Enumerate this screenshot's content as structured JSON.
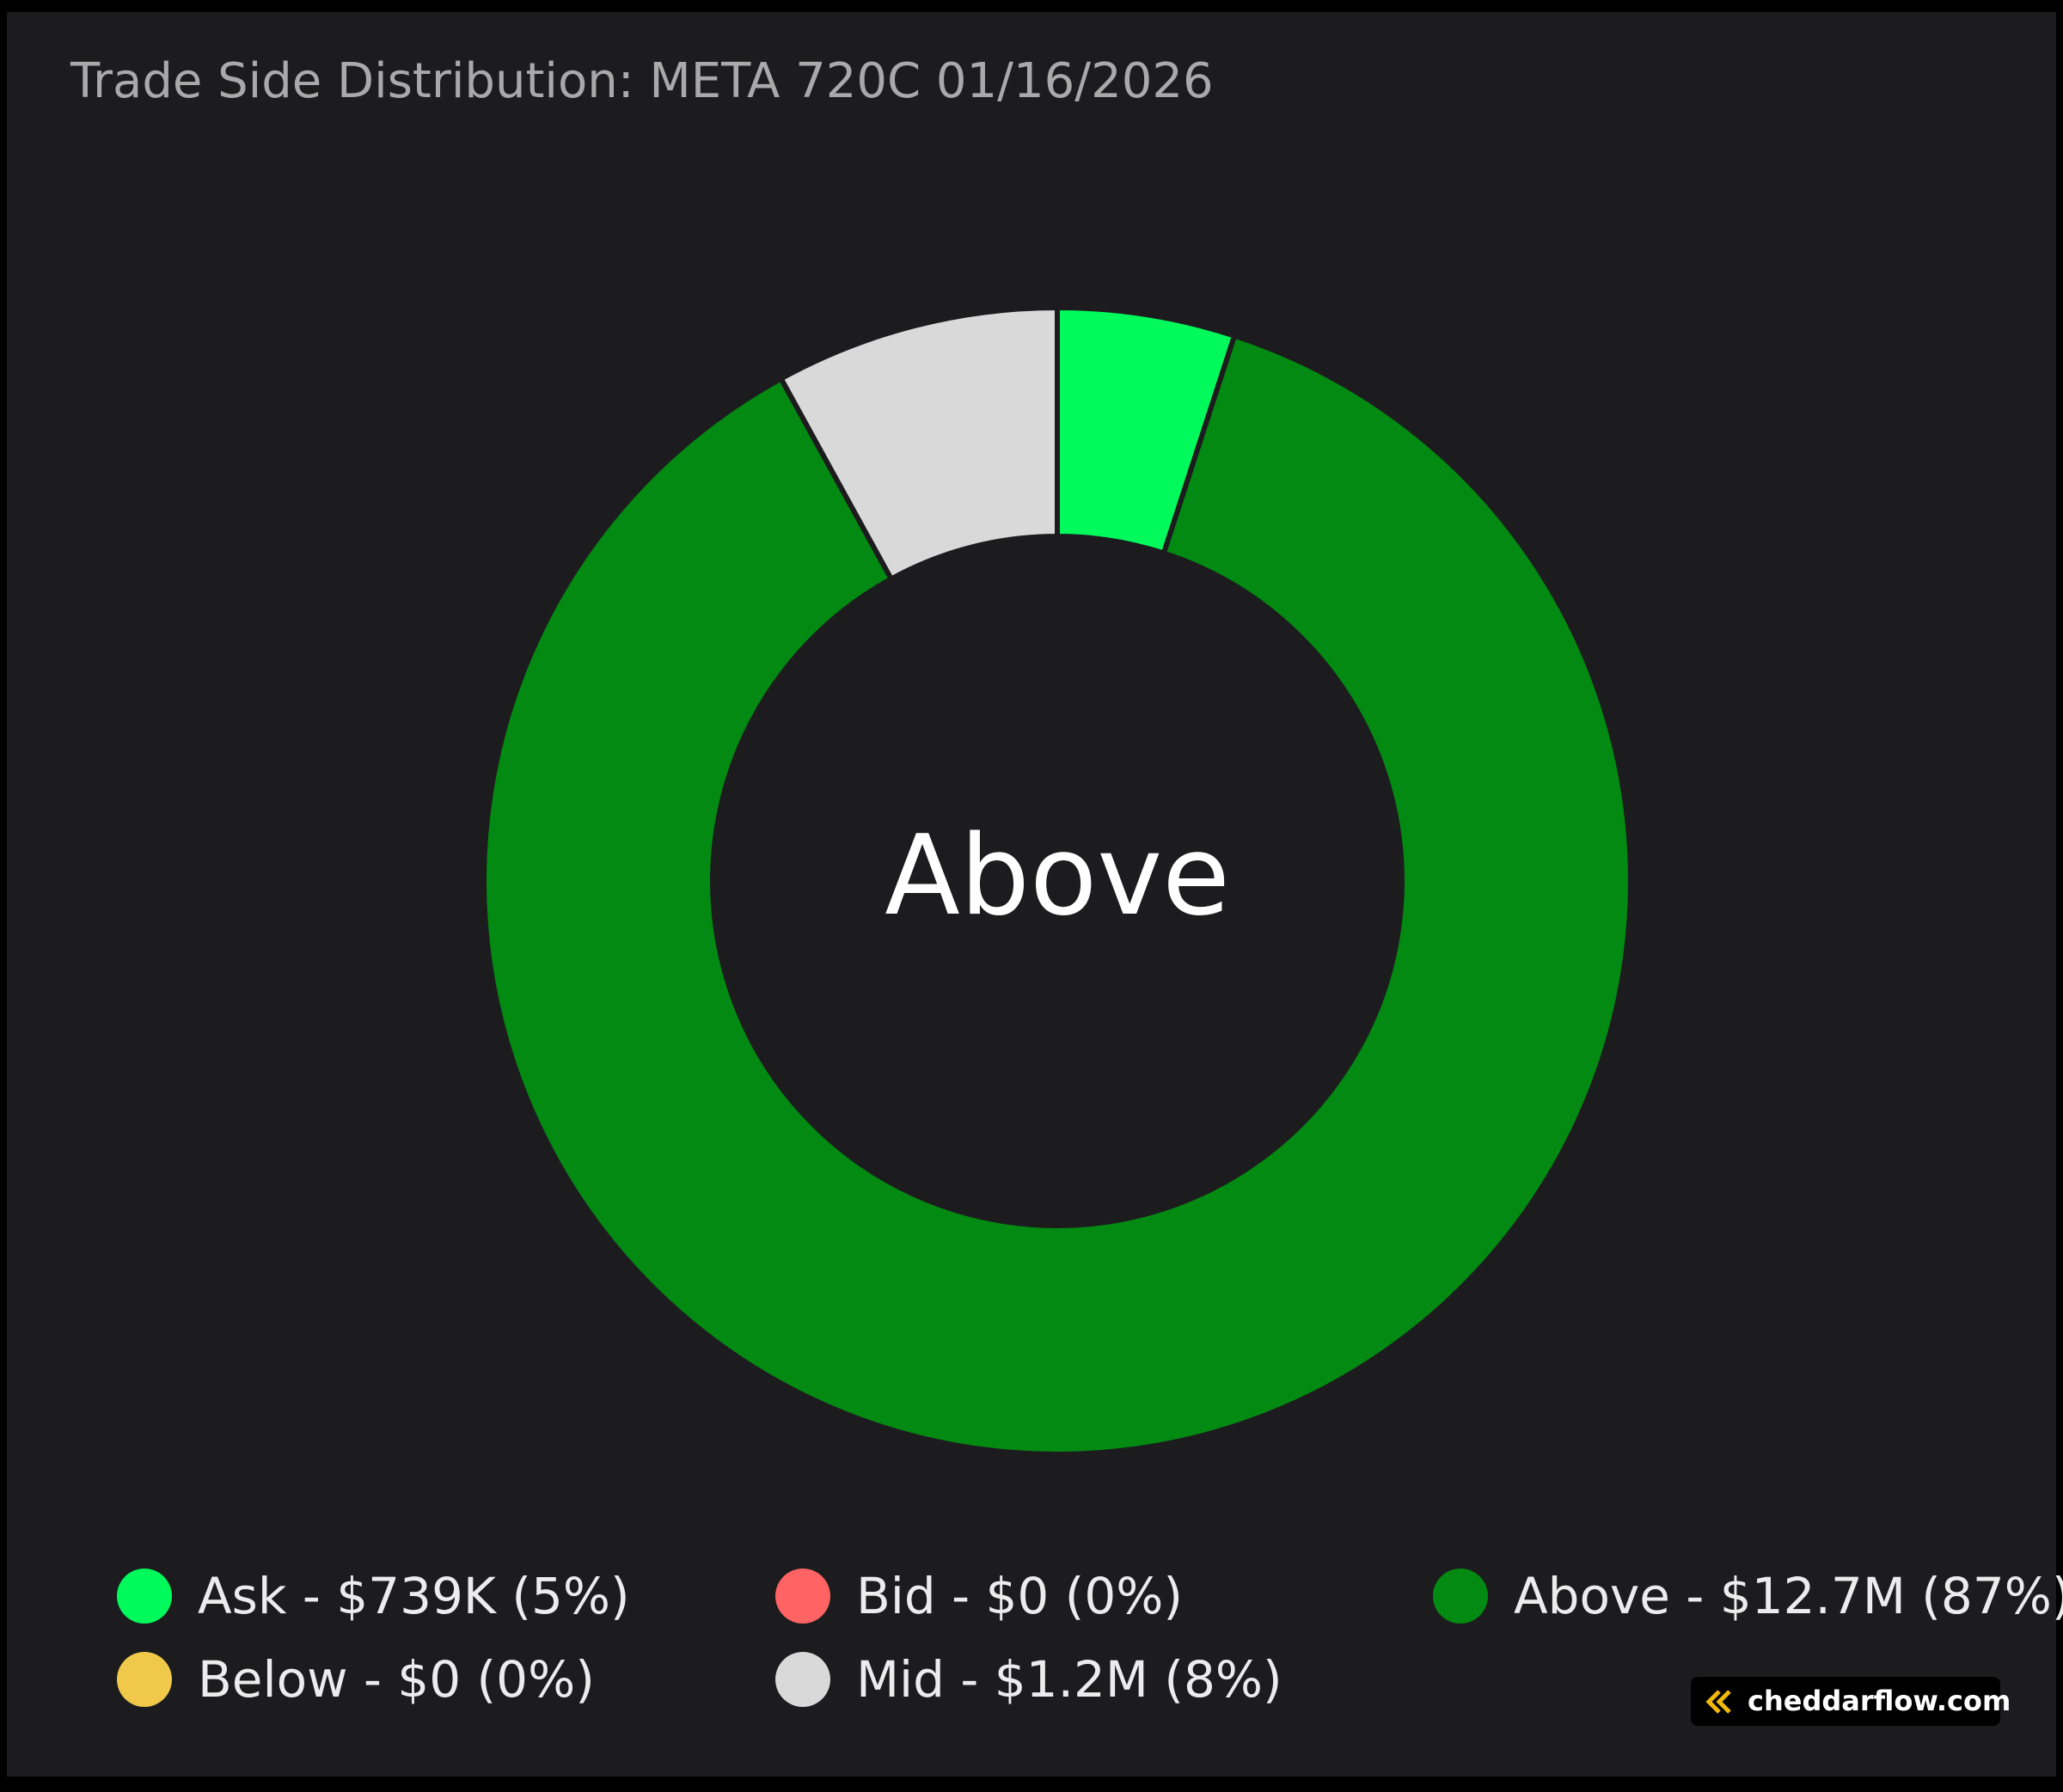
{
  "chart_data": {
    "type": "donut",
    "title": "Trade Side Distribution: META 720C 01/16/2026",
    "center_label": "Above",
    "categories": [
      "Ask",
      "Bid",
      "Above",
      "Below",
      "Mid"
    ],
    "values": [
      5,
      0,
      87,
      0,
      8
    ],
    "amounts": [
      739000,
      0,
      12700000,
      0,
      1200000
    ],
    "value_labels": [
      "Ask - $739K (5%)",
      "Bid - $0 (0%)",
      "Above - $12.7M (87%)",
      "Below - $0 (0%)",
      "Mid - $1.2M (8%)"
    ],
    "colors": [
      "#00fa5c",
      "#ff6363",
      "#038a12",
      "#f0c94b",
      "#d9d9d9"
    ],
    "watermark": "cheddarflow.com"
  }
}
